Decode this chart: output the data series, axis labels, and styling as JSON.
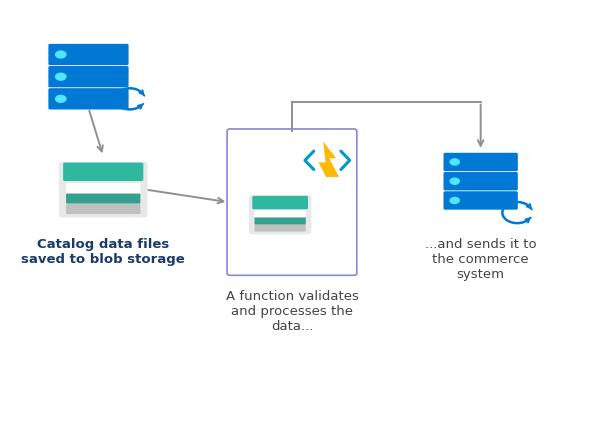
{
  "bg_color": "#ffffff",
  "figsize": [
    6.0,
    4.21
  ],
  "dpi": 100,
  "azure_blue": "#0078d4",
  "azure_cyan": "#50e6ff",
  "teal": "#2db8a0",
  "teal_mid": "#35a090",
  "teal_dark": "#1e7a6a",
  "gray_slab": "#c8c8c8",
  "gray_slab2": "#a8a8a8",
  "gray_box_bg": "#f0f0f0",
  "white": "#ffffff",
  "func_border": "#8888cc",
  "arrow_color": "#909090",
  "lightning_yellow": "#ffb900",
  "lightning_chevron": "#0099cc",
  "text_blob": "Catalog data files\nsaved to blob storage",
  "text_func": "A function validates\nand processes the\ndata...",
  "text_comm": "...and sends it to\nthe commerce\nsystem",
  "text_fontsize": 9.5,
  "text_color": "#1a3a6a",
  "text_func_color": "#444444",
  "i1x": 0.135,
  "i1y": 0.82,
  "i2x": 0.16,
  "i2y": 0.55,
  "i3x": 0.48,
  "i3y": 0.52,
  "i4x": 0.8,
  "i4y": 0.57
}
